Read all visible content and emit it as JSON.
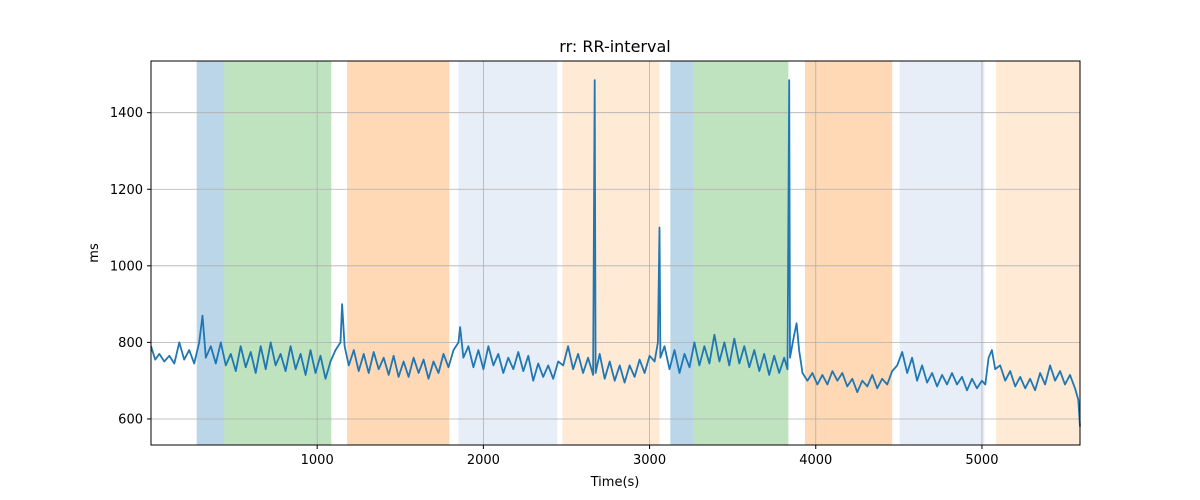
{
  "chart_data": {
    "type": "line",
    "title": "rr: RR-interval",
    "xlabel": "Time(s)",
    "ylabel": "ms",
    "xlim": [
      0,
      5590
    ],
    "ylim": [
      532,
      1535
    ],
    "xticks": [
      1000,
      2000,
      3000,
      4000,
      5000
    ],
    "yticks": [
      600,
      800,
      1000,
      1200,
      1400
    ],
    "grid": true,
    "line_color": "#1f77b4",
    "bands": [
      {
        "x0": 275,
        "x1": 440,
        "color": "#1f77b4",
        "alpha": 0.3
      },
      {
        "x0": 440,
        "x1": 1085,
        "color": "#2ca02c",
        "alpha": 0.3
      },
      {
        "x0": 1180,
        "x1": 1795,
        "color": "#ff7f0e",
        "alpha": 0.3
      },
      {
        "x0": 1850,
        "x1": 2445,
        "color": "#aec7e8",
        "alpha": 0.3
      },
      {
        "x0": 2475,
        "x1": 3060,
        "color": "#ffbb78",
        "alpha": 0.3
      },
      {
        "x0": 3125,
        "x1": 3265,
        "color": "#1f77b4",
        "alpha": 0.3
      },
      {
        "x0": 3265,
        "x1": 3835,
        "color": "#2ca02c",
        "alpha": 0.3
      },
      {
        "x0": 3935,
        "x1": 4460,
        "color": "#ff7f0e",
        "alpha": 0.3
      },
      {
        "x0": 4505,
        "x1": 5015,
        "color": "#aec7e8",
        "alpha": 0.3
      },
      {
        "x0": 5085,
        "x1": 5590,
        "color": "#ffbb78",
        "alpha": 0.3
      }
    ],
    "series": [
      {
        "values": [
          [
            0,
            790
          ],
          [
            25,
            755
          ],
          [
            50,
            770
          ],
          [
            80,
            750
          ],
          [
            110,
            765
          ],
          [
            140,
            745
          ],
          [
            170,
            800
          ],
          [
            200,
            755
          ],
          [
            230,
            780
          ],
          [
            260,
            745
          ],
          [
            290,
            800
          ],
          [
            310,
            870
          ],
          [
            330,
            760
          ],
          [
            360,
            790
          ],
          [
            390,
            745
          ],
          [
            420,
            800
          ],
          [
            450,
            740
          ],
          [
            480,
            770
          ],
          [
            510,
            725
          ],
          [
            540,
            790
          ],
          [
            570,
            735
          ],
          [
            600,
            775
          ],
          [
            630,
            720
          ],
          [
            660,
            790
          ],
          [
            690,
            730
          ],
          [
            720,
            800
          ],
          [
            750,
            740
          ],
          [
            780,
            770
          ],
          [
            810,
            725
          ],
          [
            840,
            790
          ],
          [
            870,
            730
          ],
          [
            900,
            770
          ],
          [
            930,
            715
          ],
          [
            960,
            780
          ],
          [
            990,
            720
          ],
          [
            1020,
            765
          ],
          [
            1050,
            705
          ],
          [
            1080,
            750
          ],
          [
            1110,
            780
          ],
          [
            1140,
            800
          ],
          [
            1150,
            900
          ],
          [
            1165,
            790
          ],
          [
            1190,
            740
          ],
          [
            1220,
            780
          ],
          [
            1250,
            725
          ],
          [
            1280,
            770
          ],
          [
            1310,
            720
          ],
          [
            1340,
            775
          ],
          [
            1370,
            730
          ],
          [
            1400,
            760
          ],
          [
            1430,
            715
          ],
          [
            1460,
            765
          ],
          [
            1490,
            710
          ],
          [
            1520,
            750
          ],
          [
            1550,
            710
          ],
          [
            1580,
            760
          ],
          [
            1610,
            720
          ],
          [
            1640,
            755
          ],
          [
            1670,
            705
          ],
          [
            1700,
            750
          ],
          [
            1730,
            720
          ],
          [
            1760,
            770
          ],
          [
            1790,
            735
          ],
          [
            1820,
            780
          ],
          [
            1850,
            800
          ],
          [
            1860,
            840
          ],
          [
            1880,
            760
          ],
          [
            1910,
            790
          ],
          [
            1940,
            735
          ],
          [
            1970,
            780
          ],
          [
            2000,
            730
          ],
          [
            2030,
            790
          ],
          [
            2060,
            740
          ],
          [
            2090,
            770
          ],
          [
            2120,
            720
          ],
          [
            2150,
            760
          ],
          [
            2180,
            730
          ],
          [
            2210,
            775
          ],
          [
            2240,
            725
          ],
          [
            2270,
            765
          ],
          [
            2300,
            700
          ],
          [
            2330,
            745
          ],
          [
            2360,
            710
          ],
          [
            2390,
            740
          ],
          [
            2420,
            705
          ],
          [
            2450,
            750
          ],
          [
            2480,
            740
          ],
          [
            2510,
            790
          ],
          [
            2540,
            730
          ],
          [
            2570,
            770
          ],
          [
            2600,
            720
          ],
          [
            2630,
            760
          ],
          [
            2660,
            715
          ],
          [
            2670,
            1485
          ],
          [
            2675,
            720
          ],
          [
            2700,
            770
          ],
          [
            2730,
            705
          ],
          [
            2760,
            750
          ],
          [
            2790,
            700
          ],
          [
            2820,
            740
          ],
          [
            2850,
            695
          ],
          [
            2880,
            740
          ],
          [
            2910,
            710
          ],
          [
            2940,
            755
          ],
          [
            2970,
            720
          ],
          [
            3000,
            765
          ],
          [
            3030,
            750
          ],
          [
            3050,
            800
          ],
          [
            3060,
            1100
          ],
          [
            3065,
            760
          ],
          [
            3090,
            790
          ],
          [
            3120,
            730
          ],
          [
            3150,
            780
          ],
          [
            3180,
            720
          ],
          [
            3210,
            770
          ],
          [
            3240,
            735
          ],
          [
            3270,
            800
          ],
          [
            3300,
            740
          ],
          [
            3330,
            790
          ],
          [
            3360,
            745
          ],
          [
            3390,
            820
          ],
          [
            3420,
            750
          ],
          [
            3450,
            800
          ],
          [
            3480,
            740
          ],
          [
            3510,
            810
          ],
          [
            3540,
            745
          ],
          [
            3570,
            790
          ],
          [
            3600,
            735
          ],
          [
            3630,
            780
          ],
          [
            3660,
            725
          ],
          [
            3690,
            770
          ],
          [
            3720,
            715
          ],
          [
            3750,
            765
          ],
          [
            3780,
            720
          ],
          [
            3810,
            760
          ],
          [
            3830,
            730
          ],
          [
            3840,
            1485
          ],
          [
            3845,
            760
          ],
          [
            3870,
            820
          ],
          [
            3885,
            850
          ],
          [
            3900,
            780
          ],
          [
            3920,
            720
          ],
          [
            3950,
            700
          ],
          [
            3980,
            720
          ],
          [
            4010,
            690
          ],
          [
            4040,
            715
          ],
          [
            4070,
            690
          ],
          [
            4100,
            725
          ],
          [
            4130,
            700
          ],
          [
            4160,
            720
          ],
          [
            4190,
            685
          ],
          [
            4220,
            705
          ],
          [
            4250,
            670
          ],
          [
            4280,
            700
          ],
          [
            4310,
            685
          ],
          [
            4340,
            715
          ],
          [
            4370,
            680
          ],
          [
            4400,
            705
          ],
          [
            4430,
            690
          ],
          [
            4460,
            725
          ],
          [
            4490,
            740
          ],
          [
            4520,
            775
          ],
          [
            4550,
            720
          ],
          [
            4580,
            760
          ],
          [
            4610,
            700
          ],
          [
            4640,
            740
          ],
          [
            4670,
            695
          ],
          [
            4700,
            720
          ],
          [
            4730,
            685
          ],
          [
            4760,
            715
          ],
          [
            4790,
            690
          ],
          [
            4820,
            720
          ],
          [
            4850,
            690
          ],
          [
            4880,
            710
          ],
          [
            4910,
            675
          ],
          [
            4940,
            705
          ],
          [
            4970,
            680
          ],
          [
            5000,
            700
          ],
          [
            5020,
            690
          ],
          [
            5040,
            760
          ],
          [
            5060,
            780
          ],
          [
            5080,
            730
          ],
          [
            5110,
            740
          ],
          [
            5140,
            700
          ],
          [
            5170,
            725
          ],
          [
            5200,
            685
          ],
          [
            5230,
            710
          ],
          [
            5260,
            680
          ],
          [
            5290,
            705
          ],
          [
            5320,
            675
          ],
          [
            5350,
            720
          ],
          [
            5380,
            690
          ],
          [
            5410,
            740
          ],
          [
            5440,
            700
          ],
          [
            5470,
            725
          ],
          [
            5500,
            690
          ],
          [
            5530,
            715
          ],
          [
            5560,
            680
          ],
          [
            5580,
            650
          ],
          [
            5590,
            580
          ]
        ]
      }
    ]
  }
}
